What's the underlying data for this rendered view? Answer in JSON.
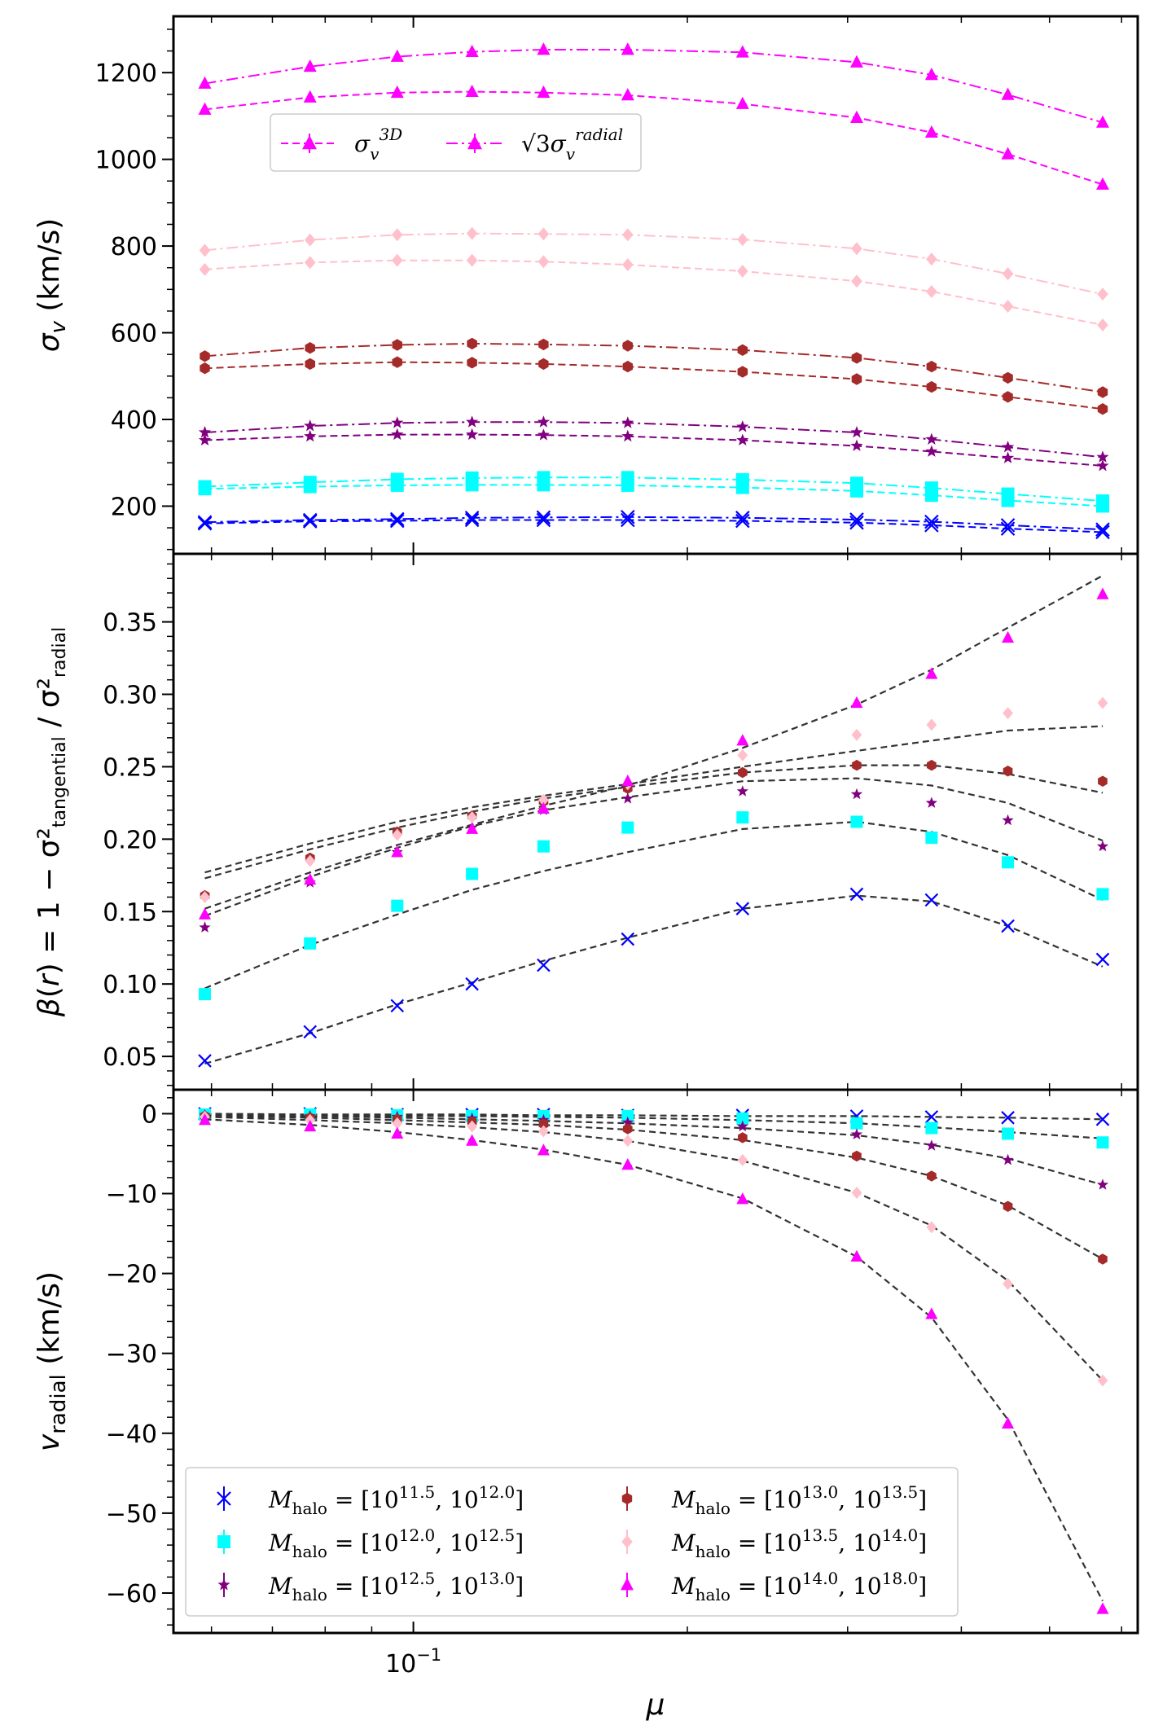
{
  "chart_data": [
    {
      "type": "line",
      "ylabel": "σ_v (km/s)",
      "xscale": "log",
      "ylim": [
        90,
        1330
      ],
      "yticks": [
        "200",
        "400",
        "600",
        "800",
        "1000",
        "1200"
      ],
      "legend": {
        "position": "upper-left",
        "entries": [
          {
            "label": "σ_v^{3D}",
            "color": "#ff00ff",
            "linestyle": "dashed",
            "marker": "triangle"
          },
          {
            "label": "√3 σ_v^{radial}",
            "color": "#ff00ff",
            "linestyle": "dashdot",
            "marker": "triangle"
          }
        ]
      },
      "x": [
        0.059,
        0.077,
        0.096,
        0.116,
        0.139,
        0.172,
        0.23,
        0.307,
        0.371,
        0.45,
        0.572
      ],
      "series": [
        {
          "group": "halo-11.5-12.0",
          "kind": "3D",
          "color": "#0000ff",
          "marker": "x",
          "values": [
            160,
            165,
            166,
            168,
            168,
            168,
            166,
            162,
            156,
            148,
            140
          ]
        },
        {
          "group": "halo-11.5-12.0",
          "kind": "sqrt3-radial",
          "color": "#0000ff",
          "marker": "x",
          "values": [
            163,
            168,
            170,
            173,
            174,
            175,
            173,
            169,
            164,
            156,
            146
          ]
        },
        {
          "group": "halo-12.0-12.5",
          "kind": "3D",
          "color": "#00ffff",
          "marker": "square",
          "values": [
            240,
            245,
            248,
            249,
            249,
            248,
            243,
            235,
            225,
            213,
            200
          ]
        },
        {
          "group": "halo-12.0-12.5",
          "kind": "sqrt3-radial",
          "color": "#00ffff",
          "marker": "square",
          "values": [
            245,
            255,
            262,
            265,
            266,
            266,
            261,
            253,
            242,
            228,
            212
          ]
        },
        {
          "group": "halo-12.5-13.0",
          "kind": "3D",
          "color": "#800080",
          "marker": "star",
          "values": [
            352,
            361,
            365,
            365,
            364,
            361,
            352,
            339,
            326,
            311,
            293
          ]
        },
        {
          "group": "halo-12.5-13.0",
          "kind": "sqrt3-radial",
          "color": "#800080",
          "marker": "star",
          "values": [
            370,
            385,
            392,
            394,
            394,
            392,
            383,
            370,
            354,
            336,
            313
          ]
        },
        {
          "group": "halo-13.0-13.5",
          "kind": "3D",
          "color": "#a52a2a",
          "marker": "hexagon",
          "values": [
            518,
            528,
            532,
            531,
            528,
            522,
            510,
            493,
            475,
            452,
            424
          ]
        },
        {
          "group": "halo-13.0-13.5",
          "kind": "sqrt3-radial",
          "color": "#a52a2a",
          "marker": "hexagon",
          "values": [
            546,
            565,
            572,
            575,
            573,
            570,
            560,
            542,
            522,
            496,
            463
          ]
        },
        {
          "group": "halo-13.5-14.0",
          "kind": "3D",
          "color": "#ffc0cb",
          "marker": "diamond",
          "values": [
            746,
            762,
            767,
            767,
            764,
            757,
            742,
            719,
            695,
            661,
            618
          ]
        },
        {
          "group": "halo-13.5-14.0",
          "kind": "sqrt3-radial",
          "color": "#ffc0cb",
          "marker": "diamond",
          "values": [
            790,
            814,
            826,
            829,
            828,
            826,
            815,
            794,
            770,
            736,
            689
          ]
        },
        {
          "group": "halo-14.0-18.0",
          "kind": "3D",
          "color": "#ff00ff",
          "marker": "triangle",
          "values": [
            1115,
            1143,
            1154,
            1156,
            1154,
            1148,
            1128,
            1096,
            1062,
            1012,
            942
          ]
        },
        {
          "group": "halo-14.0-18.0",
          "kind": "sqrt3-radial",
          "color": "#ff00ff",
          "marker": "triangle",
          "values": [
            1175,
            1214,
            1237,
            1248,
            1253,
            1253,
            1247,
            1224,
            1195,
            1149,
            1085
          ]
        }
      ]
    },
    {
      "type": "scatter",
      "ylabel": "β(r) = 1 − σ²_tangential / σ²_radial",
      "xscale": "log",
      "ylim": [
        0.027,
        0.397
      ],
      "yticks": [
        "0.05",
        "0.10",
        "0.15",
        "0.20",
        "0.25",
        "0.30",
        "0.35"
      ],
      "x": [
        0.059,
        0.077,
        0.096,
        0.116,
        0.139,
        0.172,
        0.23,
        0.307,
        0.371,
        0.45,
        0.572
      ],
      "series": [
        {
          "group": "halo-11.5-12.0",
          "color": "#0000ff",
          "marker": "x",
          "values": [
            0.047,
            0.067,
            0.085,
            0.1,
            0.113,
            0.131,
            0.152,
            0.162,
            0.158,
            0.14,
            0.117
          ],
          "fit": [
            0.045,
            0.066,
            0.086,
            0.101,
            0.116,
            0.132,
            0.152,
            0.161,
            0.157,
            0.14,
            0.112
          ]
        },
        {
          "group": "halo-12.0-12.5",
          "color": "#00ffff",
          "marker": "square",
          "values": [
            0.093,
            0.128,
            0.154,
            0.176,
            0.195,
            0.208,
            0.215,
            0.212,
            0.201,
            0.184,
            0.162
          ],
          "fit": [
            0.097,
            0.127,
            0.148,
            0.165,
            0.178,
            0.191,
            0.207,
            0.212,
            0.205,
            0.189,
            0.158
          ]
        },
        {
          "group": "halo-12.5-13.0",
          "color": "#800080",
          "marker": "star",
          "values": [
            0.139,
            0.17,
            0.191,
            0.208,
            0.22,
            0.228,
            0.233,
            0.231,
            0.225,
            0.213,
            0.195
          ],
          "fit": [
            0.147,
            0.174,
            0.194,
            0.209,
            0.22,
            0.229,
            0.24,
            0.242,
            0.237,
            0.225,
            0.199
          ]
        },
        {
          "group": "halo-13.0-13.5",
          "color": "#a52a2a",
          "marker": "hexagon",
          "values": [
            0.161,
            0.187,
            0.205,
            0.216,
            0.226,
            0.235,
            0.246,
            0.251,
            0.251,
            0.247,
            0.24
          ],
          "fit": [
            0.173,
            0.193,
            0.208,
            0.219,
            0.228,
            0.236,
            0.246,
            0.251,
            0.251,
            0.245,
            0.232
          ]
        },
        {
          "group": "halo-13.5-14.0",
          "color": "#ffc0cb",
          "marker": "diamond",
          "values": [
            0.16,
            0.185,
            0.203,
            0.215,
            0.227,
            0.238,
            0.258,
            0.272,
            0.279,
            0.287,
            0.294
          ],
          "fit": [
            0.177,
            0.197,
            0.212,
            0.222,
            0.23,
            0.238,
            0.25,
            0.261,
            0.268,
            0.275,
            0.278
          ]
        },
        {
          "group": "halo-14.0-18.0",
          "color": "#ff00ff",
          "marker": "triangle",
          "values": [
            0.148,
            0.172,
            0.191,
            0.207,
            0.221,
            0.24,
            0.268,
            0.294,
            0.314,
            0.339,
            0.369
          ],
          "fit": [
            0.152,
            0.177,
            0.196,
            0.21,
            0.223,
            0.237,
            0.263,
            0.293,
            0.317,
            0.346,
            0.382
          ]
        }
      ]
    },
    {
      "type": "scatter",
      "ylabel": "v_radial (km/s)",
      "xscale": "log",
      "xlabel": "μ",
      "xtick_label": "10^{-1}",
      "ylim": [
        -65,
        3
      ],
      "yticks": [
        "−60",
        "−50",
        "−40",
        "−30",
        "−20",
        "−10",
        "0"
      ],
      "legend": {
        "position": "lower-left",
        "entries": [
          {
            "label": "M_halo = [10^{11.5}, 10^{12.0}]",
            "color": "#0000ff",
            "marker": "x"
          },
          {
            "label": "M_halo = [10^{12.0}, 10^{12.5}]",
            "color": "#00ffff",
            "marker": "square"
          },
          {
            "label": "M_halo = [10^{12.5}, 10^{13.0}]",
            "color": "#800080",
            "marker": "star"
          },
          {
            "label": "M_halo = [10^{13.0}, 10^{13.5}]",
            "color": "#a52a2a",
            "marker": "hexagon"
          },
          {
            "label": "M_halo = [10^{13.5}, 10^{14.0}]",
            "color": "#ffc0cb",
            "marker": "diamond"
          },
          {
            "label": "M_halo = [10^{14.0}, 10^{18.0}]",
            "color": "#ff00ff",
            "marker": "triangle"
          }
        ]
      },
      "x": [
        0.059,
        0.077,
        0.096,
        0.116,
        0.139,
        0.172,
        0.23,
        0.307,
        0.371,
        0.45,
        0.572
      ],
      "series": [
        {
          "group": "halo-11.5-12.0",
          "color": "#0000ff",
          "marker": "x",
          "values": [
            0.0,
            0.0,
            -0.1,
            -0.1,
            -0.1,
            -0.2,
            -0.2,
            -0.3,
            -0.4,
            -0.5,
            -0.7
          ],
          "fit": [
            0.0,
            -0.1,
            -0.1,
            -0.1,
            -0.2,
            -0.2,
            -0.3,
            -0.3,
            -0.4,
            -0.5,
            -0.7
          ]
        },
        {
          "group": "halo-12.0-12.5",
          "color": "#00ffff",
          "marker": "square",
          "values": [
            -0.1,
            -0.1,
            -0.2,
            -0.3,
            -0.3,
            -0.3,
            -0.6,
            -1.2,
            -1.8,
            -2.5,
            -3.6
          ],
          "fit": [
            -0.1,
            -0.2,
            -0.3,
            -0.3,
            -0.4,
            -0.5,
            -0.8,
            -1.2,
            -1.7,
            -2.3,
            -3.1
          ]
        },
        {
          "group": "halo-12.5-13.0",
          "color": "#800080",
          "marker": "star",
          "values": [
            -0.2,
            -0.3,
            -0.4,
            -0.6,
            -0.8,
            -1.1,
            -1.6,
            -2.6,
            -4.0,
            -5.8,
            -8.9
          ],
          "fit": [
            -0.2,
            -0.3,
            -0.5,
            -0.7,
            -0.9,
            -1.2,
            -1.8,
            -2.7,
            -3.9,
            -5.6,
            -8.9
          ]
        },
        {
          "group": "halo-13.0-13.5",
          "color": "#a52a2a",
          "marker": "hexagon",
          "values": [
            -0.3,
            -0.5,
            -0.7,
            -1.0,
            -1.3,
            -1.9,
            -3.0,
            -5.3,
            -7.8,
            -11.6,
            -18.2
          ],
          "fit": [
            -0.3,
            -0.5,
            -0.8,
            -1.1,
            -1.4,
            -2.0,
            -3.3,
            -5.5,
            -7.8,
            -11.5,
            -18.2
          ]
        },
        {
          "group": "halo-13.5-14.0",
          "color": "#ffc0cb",
          "marker": "diamond",
          "values": [
            -0.4,
            -0.8,
            -1.2,
            -1.6,
            -2.2,
            -3.4,
            -5.8,
            -9.9,
            -14.2,
            -21.3,
            -33.4
          ],
          "fit": [
            -0.4,
            -0.8,
            -1.2,
            -1.7,
            -2.3,
            -3.4,
            -5.9,
            -9.9,
            -14.0,
            -20.9,
            -33.4
          ]
        },
        {
          "group": "halo-14.0-18.0",
          "color": "#ff00ff",
          "marker": "triangle",
          "values": [
            -0.8,
            -1.6,
            -2.5,
            -3.4,
            -4.6,
            -6.4,
            -10.7,
            -17.9,
            -25.1,
            -38.8,
            -62.0
          ],
          "fit": [
            -0.7,
            -1.4,
            -2.3,
            -3.3,
            -4.5,
            -6.4,
            -10.6,
            -17.9,
            -25.5,
            -38.3,
            -61.0
          ]
        }
      ]
    }
  ]
}
